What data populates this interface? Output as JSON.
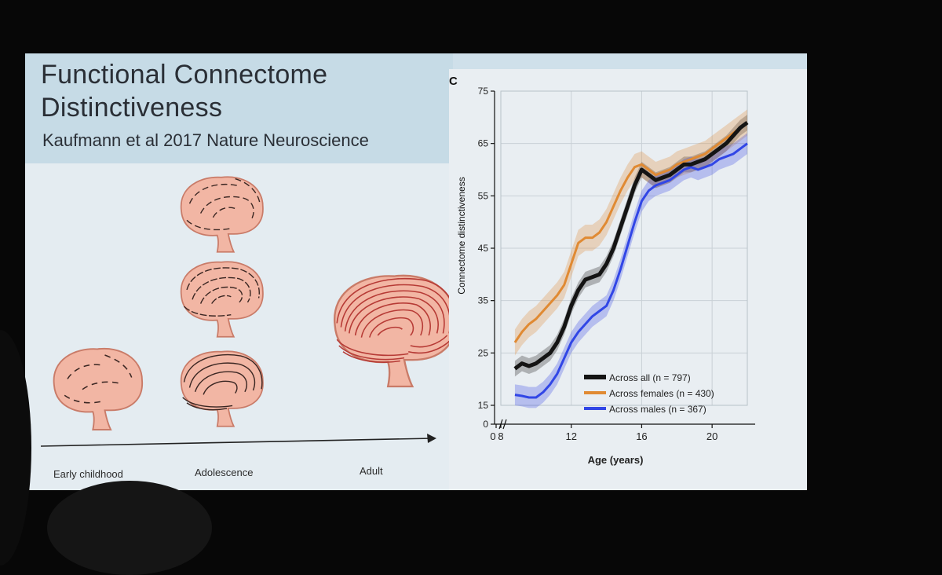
{
  "slide": {
    "title_line1": "Functional Connectome",
    "title_line2": "Distinctiveness",
    "subtitle": "Kaufmann et al 2017 Nature Neuroscience"
  },
  "illustration": {
    "stages": [
      "Early childhood",
      "Adolescence",
      "Adult"
    ],
    "brain_color": "#f2b6a4",
    "brain_outline": "#c97b68",
    "sulci_color": "#3a2622",
    "adult_sulci_color": "#b63a35"
  },
  "chart_data": {
    "type": "line",
    "panel_label": "C",
    "xlabel": "Age (years)",
    "ylabel": "Connectome distinctiveness",
    "x_ticks": [
      0,
      8,
      12,
      16,
      20
    ],
    "y_ticks": [
      0,
      15,
      25,
      35,
      45,
      55,
      65,
      75
    ],
    "xlim": [
      8,
      22
    ],
    "ylim": [
      15,
      75
    ],
    "axis_break": true,
    "grid": true,
    "legend_position": "bottom-right",
    "x": [
      8.8,
      9.2,
      9.6,
      10,
      10.4,
      10.8,
      11.2,
      11.6,
      12,
      12.4,
      12.8,
      13.2,
      13.6,
      14,
      14.4,
      14.8,
      15.2,
      15.6,
      16,
      16.4,
      16.8,
      17.2,
      17.6,
      18,
      18.4,
      18.8,
      19.2,
      19.6,
      20,
      20.4,
      20.8,
      21.2,
      21.6,
      22
    ],
    "series": [
      {
        "name": "Across all (n = 797)",
        "color": "#141414",
        "ci": 1.5,
        "values": [
          22,
          23,
          22.5,
          23,
          24,
          25,
          27,
          30,
          34,
          37,
          39,
          39.5,
          40,
          42,
          45,
          49,
          53,
          57,
          60,
          59,
          58,
          58.5,
          59,
          60,
          61,
          61,
          61.5,
          62,
          63,
          64,
          65,
          66.5,
          68,
          69
        ]
      },
      {
        "name": "Across females (n = 430)",
        "color": "#e08a33",
        "ci": 2.5,
        "values": [
          27,
          29,
          30.5,
          31.5,
          33,
          34.5,
          36,
          38,
          42,
          46,
          47,
          47,
          48,
          50,
          53,
          56,
          58.5,
          60.5,
          61,
          60,
          59,
          59.5,
          60,
          61,
          61.5,
          62,
          62.5,
          63,
          64,
          65,
          66,
          67,
          68,
          69
        ]
      },
      {
        "name": "Across males (n = 367)",
        "color": "#3146e6",
        "ci": 2.0,
        "values": [
          17,
          16.8,
          16.5,
          16.5,
          17.5,
          19,
          21,
          24,
          27,
          29,
          30.5,
          32,
          33,
          34,
          37,
          41,
          45.5,
          50,
          54,
          56,
          57,
          57.5,
          58,
          59,
          60,
          60.5,
          60,
          60.5,
          61,
          62,
          62.5,
          63,
          64,
          65
        ]
      }
    ]
  }
}
